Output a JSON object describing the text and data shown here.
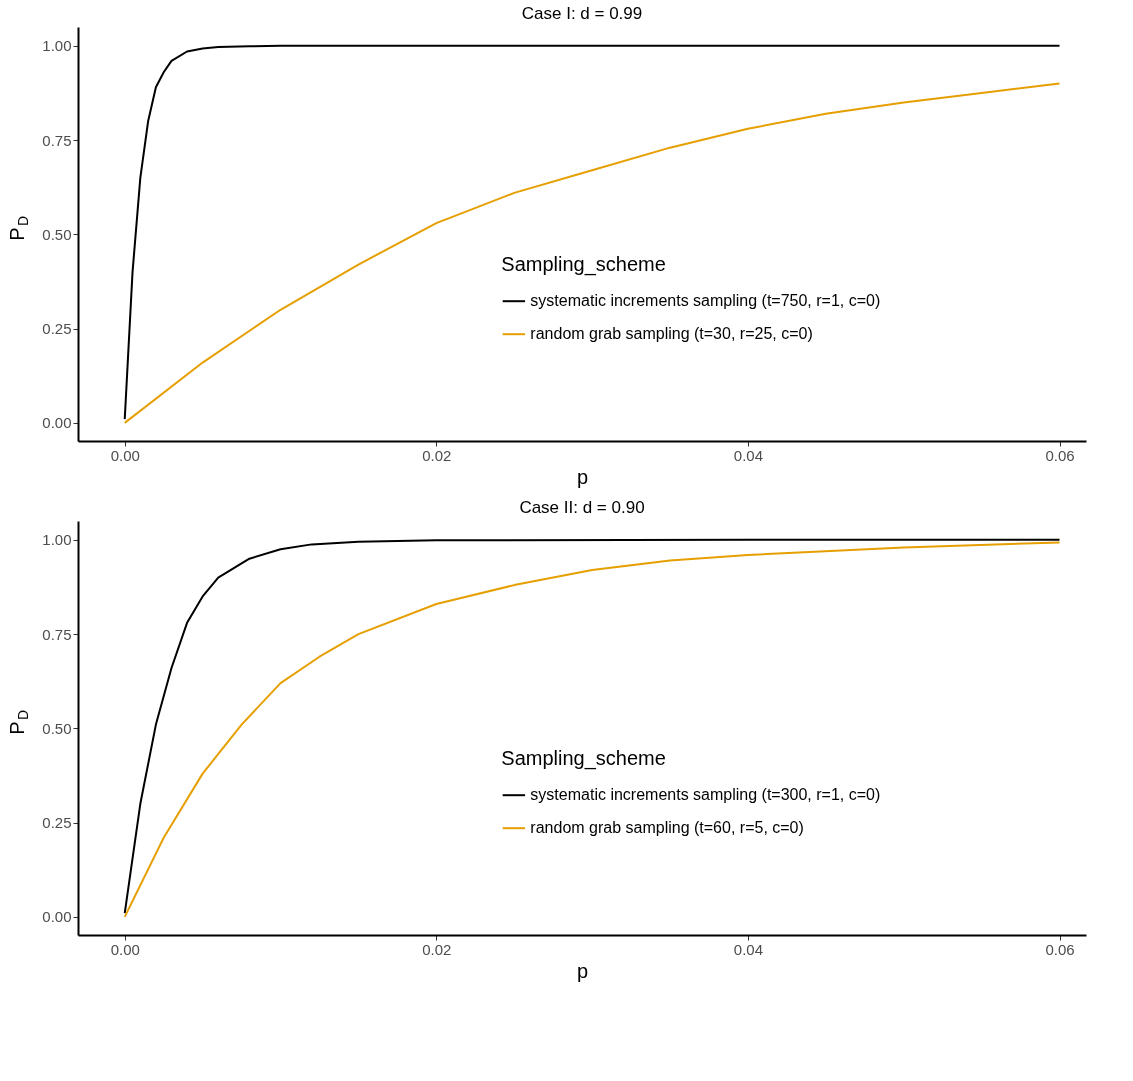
{
  "chart_data": [
    {
      "type": "line",
      "title": "Case I: d = 0.99",
      "xlabel": "p",
      "ylabel": "P$_{D}$",
      "legend_title": "Sampling_scheme",
      "legend": "bottom right",
      "grid": false,
      "xlim": [
        -0.003,
        0.0617
      ],
      "xticks": [
        {
          "value": 0,
          "label": "0.00"
        },
        0.02,
        0.04,
        0.06
      ],
      "ylim": [
        -0.048,
        1.05
      ],
      "yticks": [
        {
          "value": 0,
          "label": "0.00"
        },
        {
          "value": 0.25,
          "label": "0.25"
        },
        {
          "value": 0.5,
          "label": "0.50"
        },
        {
          "value": 0.75,
          "label": "0.75"
        },
        {
          "value": 1,
          "label": "1.00"
        }
      ],
      "series": [
        {
          "name": "systematic increments sampling (t=750, r=1, c=0)",
          "color": "#000000",
          "x": [
            0,
            0.0005,
            0.001,
            0.0015,
            0.002,
            0.0025,
            0.003,
            0.004,
            0.005,
            0.006,
            0.008,
            0.01,
            0.02,
            0.04,
            0.06
          ],
          "values": [
            0.01,
            0.4,
            0.65,
            0.8,
            0.89,
            0.93,
            0.96,
            0.985,
            0.993,
            0.997,
            0.999,
            1,
            1,
            1,
            1
          ]
        },
        {
          "name": "random grab sampling (t=30, r=25, c=0)",
          "color": "#e69f00",
          "x": [
            0,
            0.005,
            0.01,
            0.015,
            0.02,
            0.025,
            0.03,
            0.035,
            0.04,
            0.045,
            0.05,
            0.055,
            0.06
          ],
          "values": [
            0.0,
            0.16,
            0.3,
            0.42,
            0.53,
            0.61,
            0.67,
            0.73,
            0.78,
            0.82,
            0.85,
            0.875,
            0.9
          ]
        }
      ]
    },
    {
      "type": "line",
      "title": "Case II: d = 0.90",
      "xlabel": "p",
      "ylabel": "P$_{D}$",
      "legend_title": "Sampling_scheme",
      "legend": "bottom right",
      "grid": false,
      "xlim": [
        -0.003,
        0.0617
      ],
      "xticks": [
        {
          "value": 0,
          "label": "0.00"
        },
        0.02,
        0.04,
        0.06
      ],
      "ylim": [
        -0.048,
        1.05
      ],
      "yticks": [
        {
          "value": 0,
          "label": "0.00"
        },
        {
          "value": 0.25,
          "label": "0.25"
        },
        {
          "value": 0.5,
          "label": "0.50"
        },
        {
          "value": 0.75,
          "label": "0.75"
        },
        {
          "value": 1,
          "label": "1.00"
        }
      ],
      "series": [
        {
          "name": "systematic increments sampling (t=300, r=1, c=0)",
          "color": "#000000",
          "x": [
            0,
            0.001,
            0.002,
            0.003,
            0.004,
            0.005,
            0.006,
            0.008,
            0.01,
            0.012,
            0.015,
            0.02,
            0.04,
            0.06
          ],
          "values": [
            0.01,
            0.3,
            0.51,
            0.66,
            0.78,
            0.85,
            0.9,
            0.95,
            0.975,
            0.988,
            0.995,
            0.999,
            1,
            1
          ]
        },
        {
          "name": "random grab sampling (t=60, r=5, c=0)",
          "color": "#e69f00",
          "x": [
            0,
            0.0025,
            0.005,
            0.0075,
            0.01,
            0.0125,
            0.015,
            0.02,
            0.025,
            0.03,
            0.035,
            0.04,
            0.05,
            0.06
          ],
          "values": [
            0.0,
            0.21,
            0.38,
            0.51,
            0.62,
            0.69,
            0.75,
            0.83,
            0.88,
            0.92,
            0.945,
            0.96,
            0.98,
            0.993
          ]
        }
      ]
    }
  ]
}
